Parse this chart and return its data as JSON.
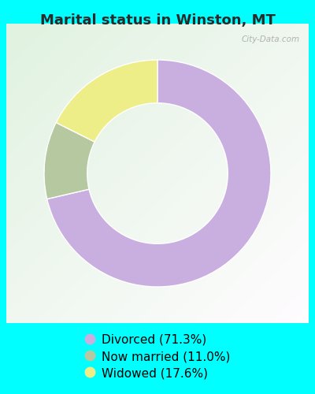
{
  "title": "Marital status in Winston, MT",
  "slices": [
    71.3,
    11.0,
    17.6
  ],
  "labels": [
    "Divorced (71.3%)",
    "Now married (11.0%)",
    "Widowed (17.6%)"
  ],
  "colors": [
    "#c9aee0",
    "#b5c8a0",
    "#eeee88"
  ],
  "outer_bg_color": "#00ffff",
  "chart_panel_color": "#e8f5ee",
  "title_fontsize": 13,
  "legend_fontsize": 11,
  "watermark": "City-Data.com",
  "start_angle": 90,
  "donut_width": 0.38
}
